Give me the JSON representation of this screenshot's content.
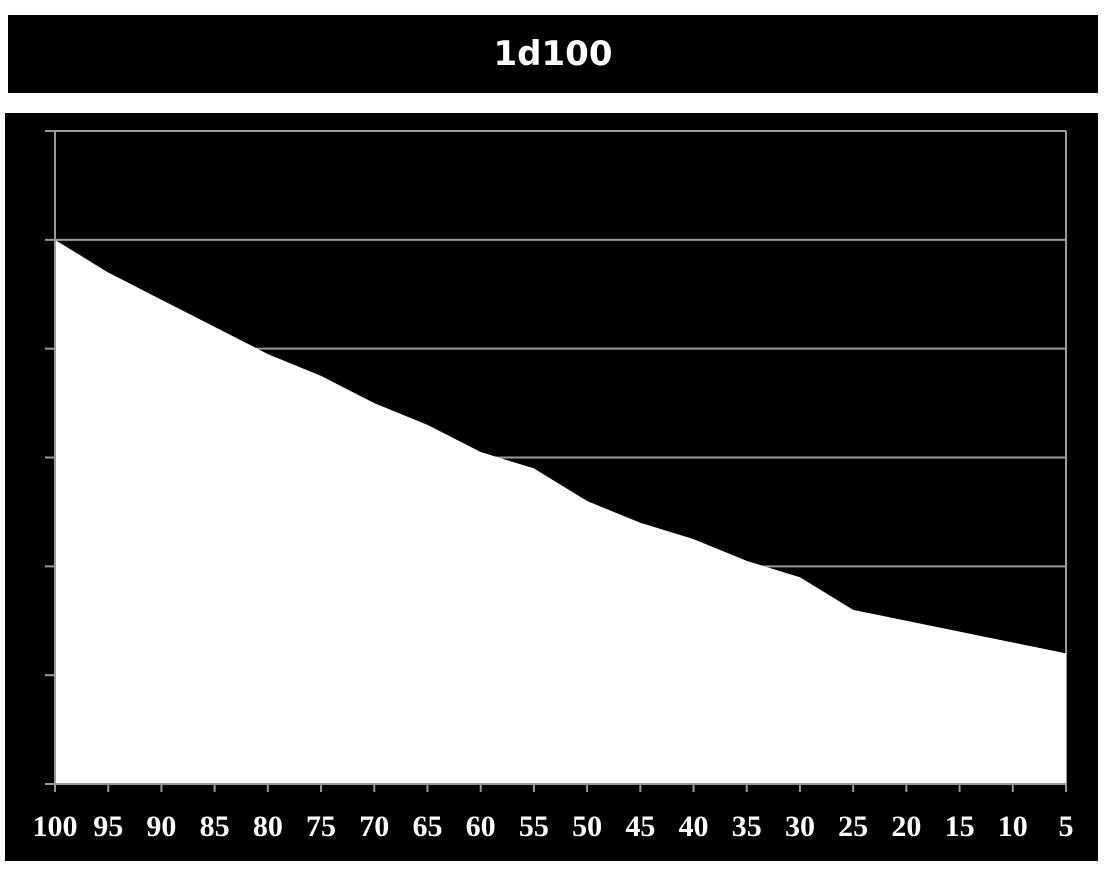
{
  "chart_data": {
    "type": "area",
    "title": "1d100",
    "x_tick_labels": [
      "100",
      "95",
      "90",
      "85",
      "80",
      "75",
      "70",
      "65",
      "60",
      "55",
      "50",
      "45",
      "40",
      "35",
      "30",
      "25",
      "20",
      "15",
      "10",
      "5"
    ],
    "x": [
      100,
      95,
      90,
      85,
      80,
      75,
      70,
      65,
      60,
      55,
      50,
      45,
      40,
      35,
      30,
      25,
      20,
      15,
      10,
      5
    ],
    "values": [
      100,
      94,
      89,
      84,
      79,
      75,
      70,
      66,
      61,
      58,
      52,
      48,
      45,
      41,
      38,
      32,
      30,
      28,
      26,
      24
    ],
    "ylim": [
      0,
      120
    ],
    "yticks_gridlines": 6,
    "grid": true,
    "colors": {
      "background": "#000000",
      "fill": "#ffffff",
      "grid": "#9a9a9a",
      "text": "#ffffff"
    }
  }
}
